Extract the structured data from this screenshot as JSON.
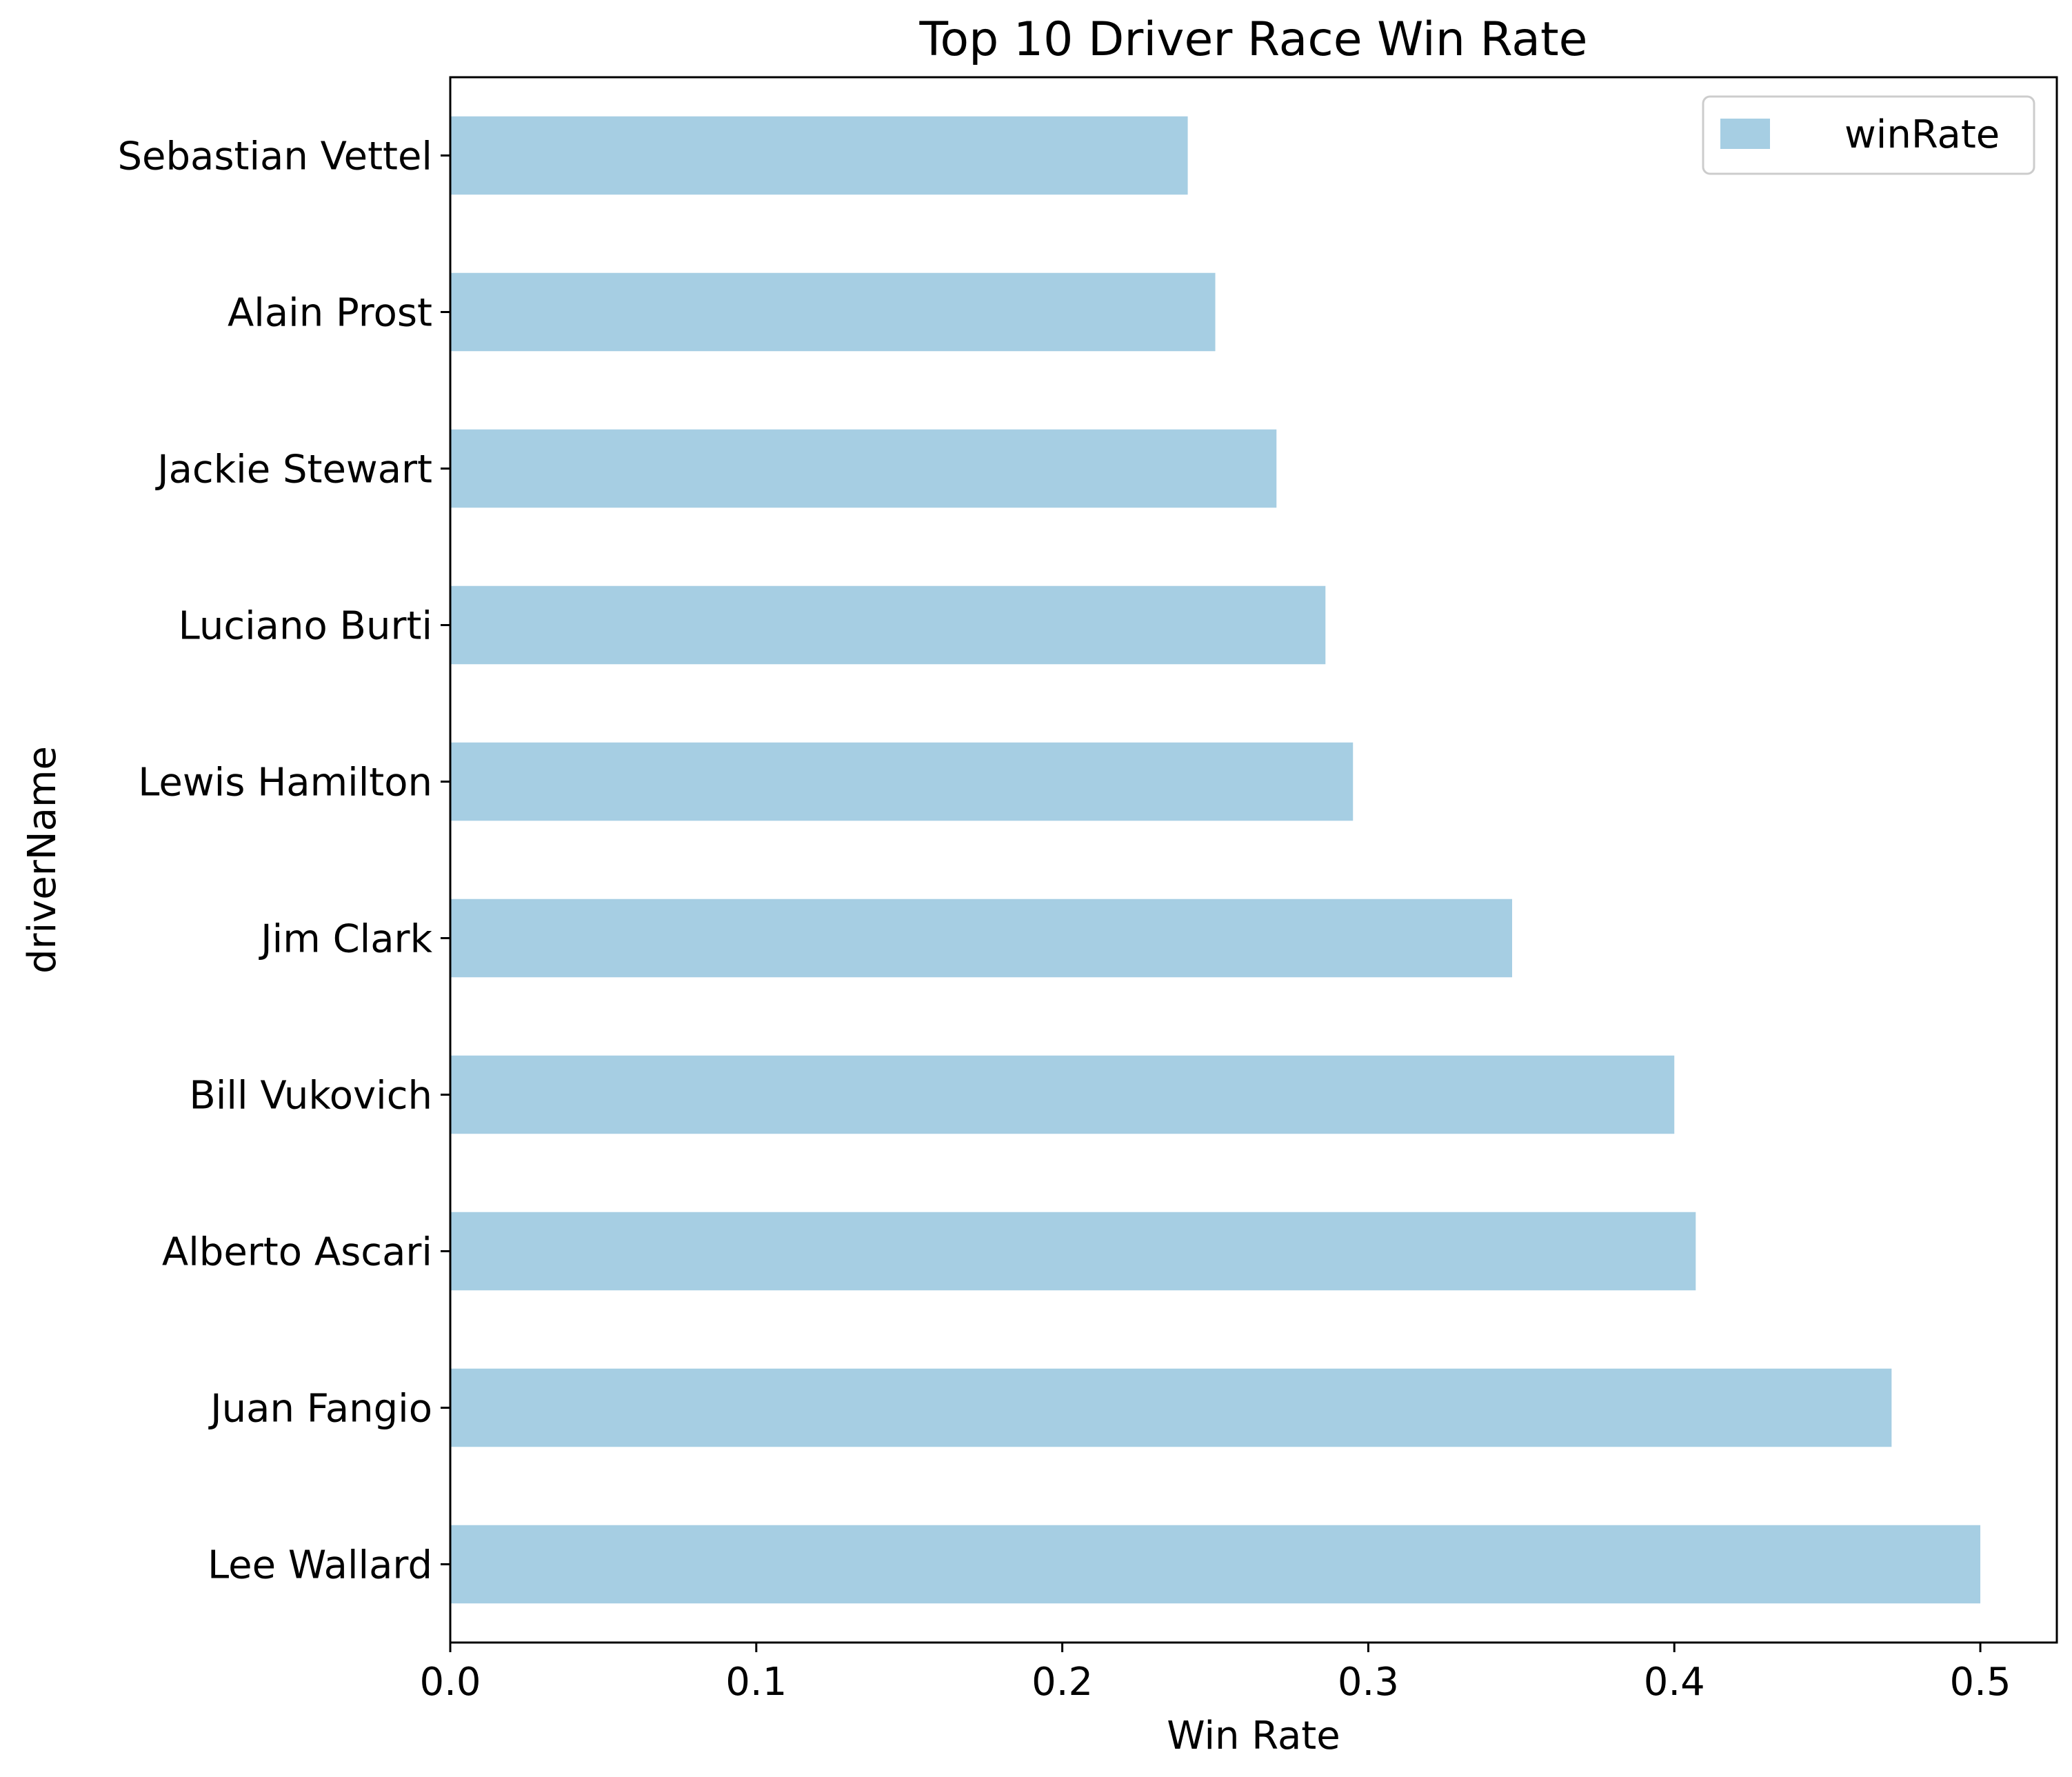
{
  "chart_data": {
    "type": "bar",
    "orientation": "horizontal",
    "title": "Top 10 Driver Race Win Rate",
    "xlabel": "Win Rate",
    "ylabel": "driverName",
    "xlim": [
      0.0,
      0.525
    ],
    "x_ticks": [
      "0.0",
      "0.1",
      "0.2",
      "0.3",
      "0.4",
      "0.5"
    ],
    "x_tick_values": [
      0.0,
      0.1,
      0.2,
      0.3,
      0.4,
      0.5
    ],
    "grid": false,
    "legend_position": "top-right",
    "categories": [
      "Lee Wallard",
      "Juan Fangio",
      "Alberto Ascari",
      "Bill Vukovich",
      "Jim Clark",
      "Lewis Hamilton",
      "Luciano Burti",
      "Jackie Stewart",
      "Alain Prost",
      "Sebastian Vettel"
    ],
    "series": [
      {
        "name": "winRate",
        "color": "#a6cee3",
        "values": [
          0.5,
          0.471,
          0.407,
          0.4,
          0.347,
          0.295,
          0.286,
          0.27,
          0.25,
          0.241
        ]
      }
    ]
  }
}
